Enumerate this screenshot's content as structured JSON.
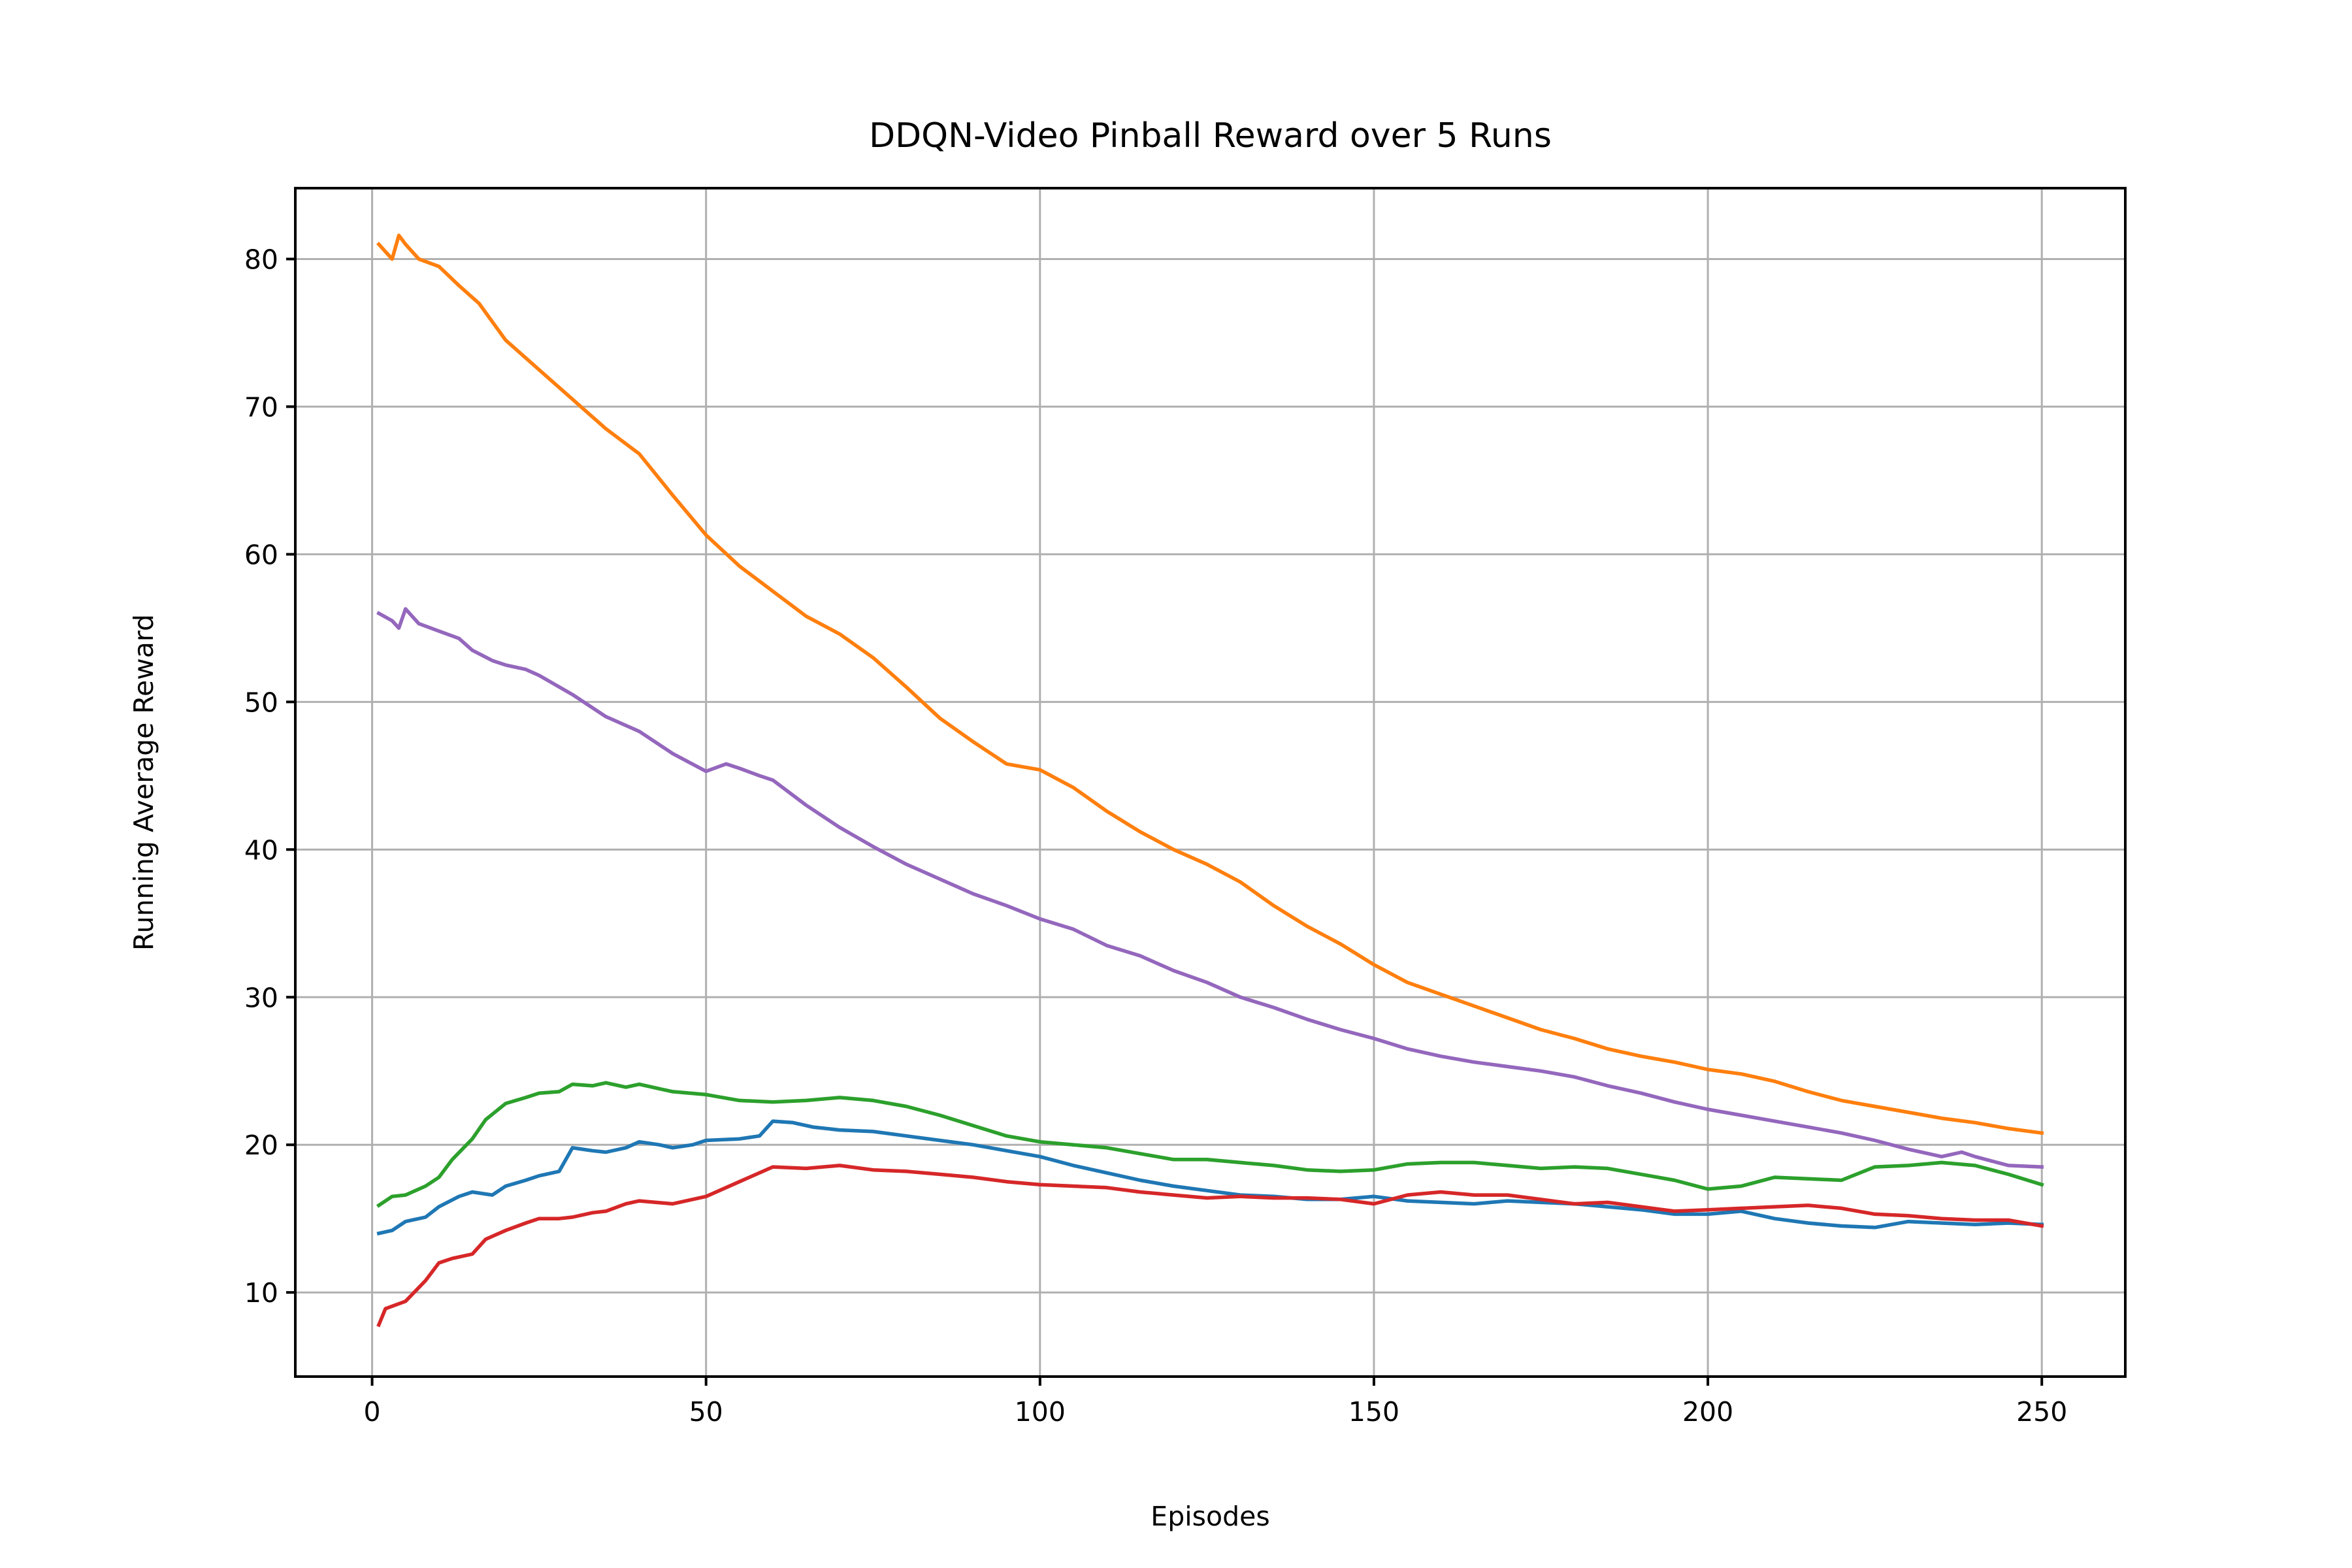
{
  "chart_data": {
    "type": "line",
    "title": "DDQN-Video Pinball Reward over 5 Runs",
    "xlabel": "Episodes",
    "ylabel": "Running Average Reward",
    "xlim": [
      -11.5,
      262.5
    ],
    "ylim": [
      4.3,
      84.8
    ],
    "xticks": [
      0,
      50,
      100,
      150,
      200,
      250
    ],
    "yticks": [
      10,
      20,
      30,
      40,
      50,
      60,
      70,
      80
    ],
    "grid": true,
    "legend": "none",
    "series": [
      {
        "color": "#1f77b4",
        "x": [
          1,
          3,
          5,
          8,
          10,
          13,
          15,
          18,
          20,
          23,
          25,
          28,
          30,
          33,
          35,
          38,
          40,
          43,
          45,
          48,
          50,
          55,
          58,
          60,
          63,
          66,
          70,
          75,
          80,
          85,
          90,
          95,
          100,
          105,
          110,
          115,
          120,
          125,
          130,
          135,
          140,
          145,
          150,
          155,
          160,
          165,
          170,
          175,
          180,
          185,
          190,
          195,
          200,
          205,
          210,
          215,
          220,
          225,
          230,
          235,
          240,
          245,
          250
        ],
        "y": [
          14.0,
          14.2,
          14.8,
          15.1,
          15.8,
          16.5,
          16.8,
          16.6,
          17.2,
          17.6,
          17.9,
          18.2,
          19.8,
          19.6,
          19.5,
          19.8,
          20.2,
          20.0,
          19.8,
          20.0,
          20.3,
          20.4,
          20.6,
          21.6,
          21.5,
          21.2,
          21.0,
          20.9,
          20.6,
          20.3,
          20.0,
          19.6,
          19.2,
          18.6,
          18.1,
          17.6,
          17.2,
          16.9,
          16.6,
          16.5,
          16.3,
          16.3,
          16.5,
          16.2,
          16.1,
          16.0,
          16.2,
          16.1,
          16.0,
          15.8,
          15.6,
          15.3,
          15.3,
          15.5,
          15.0,
          14.7,
          14.5,
          14.4,
          14.8,
          14.7,
          14.6,
          14.7,
          14.6
        ]
      },
      {
        "color": "#ff7f0e",
        "x": [
          1,
          3,
          4,
          5,
          7,
          10,
          13,
          16,
          20,
          25,
          30,
          35,
          40,
          45,
          50,
          55,
          60,
          65,
          70,
          75,
          80,
          85,
          90,
          95,
          100,
          105,
          110,
          115,
          120,
          125,
          130,
          135,
          140,
          145,
          150,
          155,
          160,
          165,
          170,
          175,
          180,
          185,
          190,
          195,
          200,
          205,
          210,
          215,
          220,
          225,
          230,
          235,
          240,
          245,
          250
        ],
        "y": [
          81.0,
          80.0,
          81.6,
          81.0,
          80.0,
          79.5,
          78.2,
          77.0,
          74.5,
          72.5,
          70.5,
          68.5,
          66.8,
          64.0,
          61.3,
          59.2,
          57.5,
          55.8,
          54.6,
          53.0,
          51.0,
          48.9,
          47.3,
          45.8,
          45.4,
          44.2,
          42.6,
          41.2,
          40.0,
          39.0,
          37.8,
          36.2,
          34.8,
          33.6,
          32.2,
          31.0,
          30.2,
          29.4,
          28.6,
          27.8,
          27.2,
          26.5,
          26.0,
          25.6,
          25.1,
          24.8,
          24.3,
          23.6,
          23.0,
          22.6,
          22.2,
          21.8,
          21.5,
          21.1,
          20.8
        ]
      },
      {
        "color": "#2ca02c",
        "x": [
          1,
          3,
          5,
          8,
          10,
          12,
          15,
          17,
          20,
          23,
          25,
          28,
          30,
          33,
          35,
          38,
          40,
          43,
          45,
          50,
          55,
          60,
          65,
          70,
          75,
          80,
          85,
          90,
          95,
          100,
          105,
          110,
          115,
          120,
          125,
          130,
          135,
          140,
          145,
          150,
          155,
          160,
          165,
          170,
          175,
          180,
          185,
          190,
          195,
          200,
          205,
          210,
          215,
          220,
          225,
          230,
          235,
          240,
          245,
          250
        ],
        "y": [
          15.9,
          16.5,
          16.6,
          17.2,
          17.8,
          19.0,
          20.4,
          21.7,
          22.8,
          23.2,
          23.5,
          23.6,
          24.1,
          24.0,
          24.2,
          23.9,
          24.1,
          23.8,
          23.6,
          23.4,
          23.0,
          22.9,
          23.0,
          23.2,
          23.0,
          22.6,
          22.0,
          21.3,
          20.6,
          20.2,
          20.0,
          19.8,
          19.4,
          19.0,
          19.0,
          18.8,
          18.6,
          18.3,
          18.2,
          18.3,
          18.7,
          18.8,
          18.8,
          18.6,
          18.4,
          18.5,
          18.4,
          18.0,
          17.6,
          17.0,
          17.2,
          17.8,
          17.7,
          17.6,
          18.5,
          18.6,
          18.8,
          18.6,
          18.0,
          17.3
        ]
      },
      {
        "color": "#d62728",
        "x": [
          1,
          2,
          5,
          8,
          10,
          12,
          15,
          17,
          20,
          23,
          25,
          28,
          30,
          33,
          35,
          38,
          40,
          45,
          50,
          55,
          60,
          65,
          70,
          75,
          80,
          85,
          90,
          95,
          100,
          105,
          110,
          115,
          120,
          125,
          130,
          135,
          140,
          145,
          150,
          155,
          160,
          165,
          170,
          175,
          180,
          185,
          190,
          195,
          200,
          205,
          210,
          215,
          220,
          225,
          230,
          235,
          240,
          245,
          250
        ],
        "y": [
          7.8,
          8.9,
          9.4,
          10.8,
          12.0,
          12.3,
          12.6,
          13.6,
          14.2,
          14.7,
          15.0,
          15.0,
          15.1,
          15.4,
          15.5,
          16.0,
          16.2,
          16.0,
          16.5,
          17.5,
          18.5,
          18.4,
          18.6,
          18.3,
          18.2,
          18.0,
          17.8,
          17.5,
          17.3,
          17.2,
          17.1,
          16.8,
          16.6,
          16.4,
          16.5,
          16.4,
          16.4,
          16.3,
          16.0,
          16.6,
          16.8,
          16.6,
          16.6,
          16.3,
          16.0,
          16.1,
          15.8,
          15.5,
          15.6,
          15.7,
          15.8,
          15.9,
          15.7,
          15.3,
          15.2,
          15.0,
          14.9,
          14.9,
          14.5
        ]
      },
      {
        "color": "#9467bd",
        "x": [
          1,
          3,
          4,
          5,
          7,
          10,
          13,
          15,
          18,
          20,
          23,
          25,
          30,
          35,
          40,
          45,
          50,
          53,
          55,
          58,
          60,
          65,
          70,
          75,
          80,
          85,
          90,
          95,
          100,
          105,
          110,
          115,
          120,
          125,
          130,
          135,
          140,
          145,
          150,
          155,
          160,
          165,
          170,
          175,
          180,
          185,
          190,
          195,
          200,
          205,
          210,
          215,
          220,
          225,
          230,
          235,
          238,
          240,
          245,
          250
        ],
        "y": [
          56.0,
          55.5,
          55.0,
          56.3,
          55.3,
          54.8,
          54.3,
          53.5,
          52.8,
          52.5,
          52.2,
          51.8,
          50.5,
          49.0,
          48.0,
          46.5,
          45.3,
          45.8,
          45.5,
          45.0,
          44.7,
          43.0,
          41.5,
          40.2,
          39.0,
          38.0,
          37.0,
          36.2,
          35.3,
          34.6,
          33.5,
          32.8,
          31.8,
          31.0,
          30.0,
          29.3,
          28.5,
          27.8,
          27.2,
          26.5,
          26.0,
          25.6,
          25.3,
          25.0,
          24.6,
          24.0,
          23.5,
          22.9,
          22.4,
          22.0,
          21.6,
          21.2,
          20.8,
          20.3,
          19.7,
          19.2,
          19.5,
          19.2,
          18.6,
          18.5
        ]
      }
    ]
  }
}
